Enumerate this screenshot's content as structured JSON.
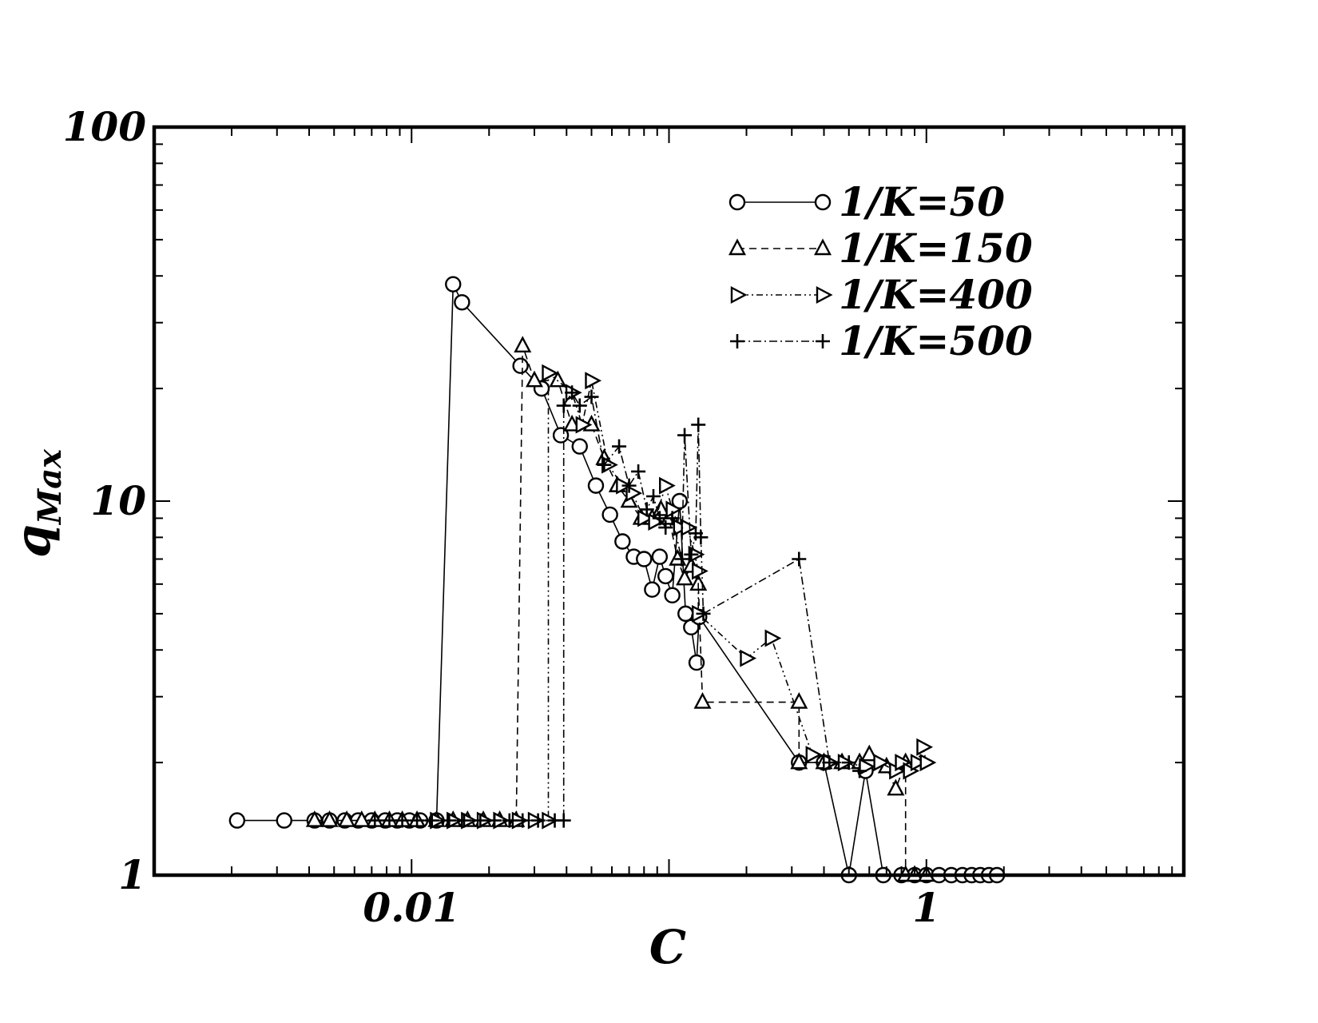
{
  "chart_data": {
    "type": "line",
    "title": "",
    "xlabel": "C",
    "ylabel_main": "q",
    "ylabel_sub": "Max",
    "xscale": "log",
    "yscale": "log",
    "xlim": [
      0.001,
      10
    ],
    "ylim": [
      1,
      100
    ],
    "x_tick_labels": [
      {
        "value": 0.01,
        "label": "0.01"
      },
      {
        "value": 1,
        "label": "1"
      }
    ],
    "y_tick_labels": [
      {
        "value": 1,
        "label": "1"
      },
      {
        "value": 10,
        "label": "10"
      },
      {
        "value": 100,
        "label": "100"
      }
    ],
    "grid": false,
    "legend_position": "top-right",
    "series": [
      {
        "name": "1/K=50",
        "marker": "circle",
        "dash": "",
        "points": [
          [
            0.0021,
            1.4
          ],
          [
            0.0032,
            1.4
          ],
          [
            0.0042,
            1.4
          ],
          [
            0.0048,
            1.4
          ],
          [
            0.0055,
            1.4
          ],
          [
            0.0062,
            1.4
          ],
          [
            0.007,
            1.4
          ],
          [
            0.0079,
            1.4
          ],
          [
            0.0088,
            1.4
          ],
          [
            0.0098,
            1.4
          ],
          [
            0.0108,
            1.4
          ],
          [
            0.0125,
            1.4
          ],
          [
            0.0145,
            38
          ],
          [
            0.0157,
            34
          ],
          [
            0.0265,
            23
          ],
          [
            0.032,
            20
          ],
          [
            0.038,
            15
          ],
          [
            0.045,
            14
          ],
          [
            0.052,
            11
          ],
          [
            0.059,
            9.2
          ],
          [
            0.066,
            7.8
          ],
          [
            0.073,
            7.1
          ],
          [
            0.08,
            7.0
          ],
          [
            0.086,
            5.8
          ],
          [
            0.092,
            7.1
          ],
          [
            0.097,
            6.3
          ],
          [
            0.103,
            5.6
          ],
          [
            0.11,
            10
          ],
          [
            0.116,
            5.0
          ],
          [
            0.122,
            4.6
          ],
          [
            0.128,
            3.7
          ],
          [
            0.131,
            4.9
          ],
          [
            0.32,
            2.0
          ],
          [
            0.4,
            2.0
          ],
          [
            0.5,
            1.0
          ],
          [
            0.58,
            1.9
          ],
          [
            0.68,
            1.0
          ],
          [
            0.8,
            1.0
          ],
          [
            0.9,
            1.0
          ],
          [
            1.0,
            1.0
          ],
          [
            1.12,
            1.0
          ],
          [
            1.25,
            1.0
          ],
          [
            1.38,
            1.0
          ],
          [
            1.5,
            1.0
          ],
          [
            1.62,
            1.0
          ],
          [
            1.75,
            1.0
          ],
          [
            1.88,
            1.0
          ]
        ]
      },
      {
        "name": "1/K=150",
        "marker": "triangle-up",
        "dash": "9,6",
        "points": [
          [
            0.0042,
            1.4
          ],
          [
            0.0048,
            1.4
          ],
          [
            0.0056,
            1.4
          ],
          [
            0.0064,
            1.4
          ],
          [
            0.0072,
            1.4
          ],
          [
            0.0082,
            1.4
          ],
          [
            0.0092,
            1.4
          ],
          [
            0.0105,
            1.4
          ],
          [
            0.0125,
            1.4
          ],
          [
            0.0145,
            1.4
          ],
          [
            0.0165,
            1.4
          ],
          [
            0.019,
            1.4
          ],
          [
            0.022,
            1.4
          ],
          [
            0.0255,
            1.4
          ],
          [
            0.027,
            26
          ],
          [
            0.03,
            21
          ],
          [
            0.037,
            21
          ],
          [
            0.042,
            16
          ],
          [
            0.05,
            16
          ],
          [
            0.056,
            13
          ],
          [
            0.063,
            11
          ],
          [
            0.07,
            10
          ],
          [
            0.078,
            9
          ],
          [
            0.086,
            9
          ],
          [
            0.093,
            9.5
          ],
          [
            0.1,
            9
          ],
          [
            0.108,
            7
          ],
          [
            0.115,
            6.2
          ],
          [
            0.122,
            6.7
          ],
          [
            0.13,
            6.0
          ],
          [
            0.135,
            2.9
          ],
          [
            0.32,
            2.9
          ],
          [
            0.32,
            2.0
          ],
          [
            0.4,
            2.0
          ],
          [
            0.47,
            2.0
          ],
          [
            0.55,
            2.0
          ],
          [
            0.6,
            2.1
          ],
          [
            0.7,
            1.95
          ],
          [
            0.76,
            1.7
          ],
          [
            0.83,
            2.0
          ],
          [
            0.83,
            1.0
          ],
          [
            0.9,
            1.0
          ],
          [
            1.0,
            1.0
          ]
        ]
      },
      {
        "name": "1/K=400",
        "marker": "triangle-right",
        "dash": "8,4,2,4,2,4",
        "points": [
          [
            0.0125,
            1.4
          ],
          [
            0.0145,
            1.4
          ],
          [
            0.0165,
            1.4
          ],
          [
            0.019,
            1.4
          ],
          [
            0.022,
            1.4
          ],
          [
            0.026,
            1.4
          ],
          [
            0.03,
            1.4
          ],
          [
            0.034,
            1.4
          ],
          [
            0.034,
            22
          ],
          [
            0.042,
            19.5
          ],
          [
            0.046,
            16
          ],
          [
            0.05,
            21
          ],
          [
            0.058,
            12.5
          ],
          [
            0.066,
            11
          ],
          [
            0.072,
            10.5
          ],
          [
            0.08,
            9
          ],
          [
            0.088,
            8.8
          ],
          [
            0.097,
            11
          ],
          [
            0.103,
            9.5
          ],
          [
            0.11,
            8.5
          ],
          [
            0.118,
            8.5
          ],
          [
            0.126,
            7.2
          ],
          [
            0.13,
            6.5
          ],
          [
            0.13,
            5.0
          ],
          [
            0.2,
            3.8
          ],
          [
            0.25,
            4.3
          ],
          [
            0.36,
            2.1
          ],
          [
            0.42,
            2.0
          ],
          [
            0.48,
            2.0
          ],
          [
            0.58,
            1.95
          ],
          [
            0.66,
            2.0
          ],
          [
            0.76,
            1.9
          ],
          [
            0.8,
            2.0
          ],
          [
            0.86,
            1.9
          ],
          [
            0.92,
            2.0
          ],
          [
            0.97,
            2.2
          ],
          [
            1.0,
            2.0
          ]
        ]
      },
      {
        "name": "1/K=500",
        "marker": "plus",
        "dash": "10,4,2,4",
        "points": [
          [
            0.0072,
            1.4
          ],
          [
            0.0082,
            1.4
          ],
          [
            0.0092,
            1.4
          ],
          [
            0.0105,
            1.4
          ],
          [
            0.012,
            1.4
          ],
          [
            0.014,
            1.4
          ],
          [
            0.016,
            1.4
          ],
          [
            0.0185,
            1.4
          ],
          [
            0.021,
            1.4
          ],
          [
            0.024,
            1.4
          ],
          [
            0.027,
            1.4
          ],
          [
            0.031,
            1.4
          ],
          [
            0.036,
            1.4
          ],
          [
            0.039,
            1.4
          ],
          [
            0.039,
            18
          ],
          [
            0.042,
            19.5
          ],
          [
            0.045,
            18
          ],
          [
            0.05,
            19
          ],
          [
            0.056,
            12.5
          ],
          [
            0.064,
            14
          ],
          [
            0.07,
            11
          ],
          [
            0.076,
            12
          ],
          [
            0.082,
            9.5
          ],
          [
            0.087,
            10.3
          ],
          [
            0.092,
            9
          ],
          [
            0.097,
            8.5
          ],
          [
            0.103,
            9
          ],
          [
            0.112,
            7
          ],
          [
            0.115,
            15
          ],
          [
            0.122,
            7.2
          ],
          [
            0.127,
            8.2
          ],
          [
            0.13,
            16
          ],
          [
            0.133,
            8.0
          ],
          [
            0.136,
            5.0
          ],
          [
            0.32,
            7.0
          ],
          [
            0.42,
            2.0
          ],
          [
            0.5,
            2.0
          ],
          [
            0.55,
            1.9
          ]
        ]
      }
    ]
  }
}
